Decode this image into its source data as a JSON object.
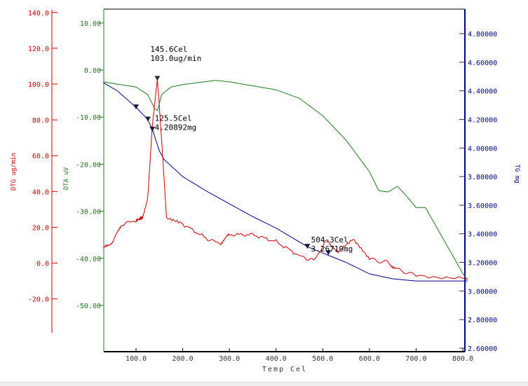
{
  "chart_data": {
    "type": "line",
    "xlabel": "Temp Cel",
    "xlim": [
      30,
      810
    ],
    "xticks": [
      "100.0",
      "200.0",
      "300.0",
      "400.0",
      "500.0",
      "600.0",
      "700.0",
      "800.0"
    ],
    "axes": {
      "dtg": {
        "label": "DTG ug/min",
        "color": "#cc0000",
        "ylim": [
          -40,
          140
        ],
        "ticks": [
          "140.0",
          "120.0",
          "100.0",
          "80.0",
          "60.0",
          "40.0",
          "20.0",
          "0.0",
          "-20.0"
        ]
      },
      "dta": {
        "label": "DTA uV",
        "color": "#1f7a1f",
        "ylim": [
          -56,
          13
        ],
        "ticks": [
          "10.00",
          "0.00",
          "-10.00",
          "-20.00",
          "-30.00",
          "-40.00",
          "-50.00"
        ]
      },
      "tg": {
        "label": "TG mg",
        "color": "#00008b",
        "ylim": [
          2.6,
          4.98
        ],
        "ticks": [
          "4.80000",
          "4.60000",
          "4.40000",
          "4.20000",
          "4.00000",
          "3.80000",
          "3.60000",
          "3.40000",
          "3.20000",
          "3.00000",
          "2.80000",
          "2.60000"
        ]
      }
    },
    "series": [
      {
        "name": "TG",
        "axis": "tg",
        "color": "#00008b",
        "x": [
          30,
          60,
          100,
          125,
          135,
          150,
          160,
          200,
          250,
          300,
          350,
          400,
          467,
          504,
          550,
          600,
          650,
          700,
          810
        ],
        "y": [
          4.457,
          4.4,
          4.285,
          4.2,
          4.13,
          3.98,
          3.92,
          3.8,
          3.7,
          3.61,
          3.52,
          3.44,
          3.31,
          3.26,
          3.2,
          3.12,
          3.085,
          3.07,
          3.07
        ]
      },
      {
        "name": "DTA",
        "axis": "dta",
        "color": "#1f7a1f",
        "x": [
          30,
          60,
          100,
          125,
          140,
          146,
          155,
          175,
          200,
          270,
          300,
          400,
          450,
          500,
          550,
          600,
          620,
          640,
          660,
          680,
          700,
          720,
          740,
          800,
          810
        ],
        "y": [
          -2.5,
          -3.0,
          -3.6,
          -5.2,
          -8.2,
          -8.6,
          -5.2,
          -3.6,
          -3.1,
          -2.2,
          -2.5,
          -4.2,
          -6.0,
          -9.7,
          -14.9,
          -21.6,
          -25.6,
          -25.9,
          -24.7,
          -26.8,
          -29.2,
          -29.2,
          -32.7,
          -43.2,
          -44.6
        ]
      },
      {
        "name": "DTG",
        "axis": "dtg",
        "color": "#cc0000",
        "x": [
          30,
          50,
          70,
          100,
          115,
          125,
          135,
          145.6,
          155,
          165,
          200,
          250,
          280,
          300,
          350,
          400,
          450,
          480,
          510,
          530,
          565,
          600,
          640,
          660,
          700,
          810
        ],
        "y": [
          8,
          12,
          21.8,
          23.7,
          25.7,
          37,
          76.5,
          103,
          68.7,
          25.7,
          21.8,
          14,
          10.8,
          15.9,
          15.9,
          12,
          4.1,
          1.4,
          13,
          6.1,
          13,
          2.2,
          0.2,
          -3.7,
          -6.8,
          -8.8
        ]
      }
    ],
    "markers": [
      {
        "axis": "tg",
        "x": 100,
        "y": 4.285,
        "color": "#00008b"
      },
      {
        "axis": "tg",
        "x": 125.5,
        "y": 4.2,
        "color": "#00008b"
      },
      {
        "axis": "tg",
        "x": 135,
        "y": 4.13,
        "color": "#00008b"
      },
      {
        "axis": "tg",
        "x": 467,
        "y": 3.31,
        "color": "#00008b"
      },
      {
        "axis": "tg",
        "x": 512,
        "y": 3.265,
        "color": "#00008b"
      },
      {
        "axis": "dtg",
        "x": 145.6,
        "y": 103,
        "color": "#cc0000"
      }
    ],
    "annotations": [
      {
        "lines": [
          "145.6Cel",
          "103.0ug/min"
        ],
        "x": 145.6,
        "axis": "dtg",
        "y": 118
      },
      {
        "lines": [
          "125.5Cel",
          "4.20892mg"
        ],
        "x": 140,
        "axis": "tg",
        "y": 4.19
      },
      {
        "lines": [
          "504.3Cel",
          "3.26719mg"
        ],
        "x": 475,
        "axis": "tg",
        "y": 3.34
      }
    ]
  }
}
